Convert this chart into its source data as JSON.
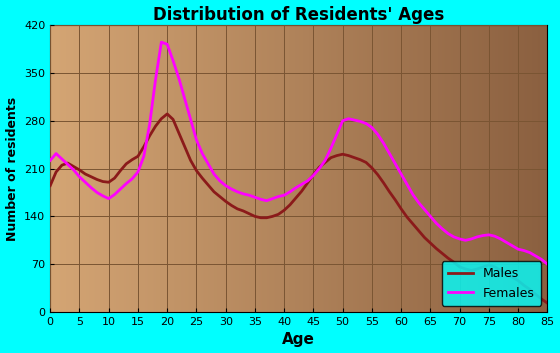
{
  "title": "Distribution of Residents' Ages",
  "xlabel": "Age",
  "ylabel": "Number of residents",
  "xlim": [
    0,
    85
  ],
  "ylim": [
    0,
    420
  ],
  "xticks": [
    0,
    5,
    10,
    15,
    20,
    25,
    30,
    35,
    40,
    45,
    50,
    55,
    60,
    65,
    70,
    75,
    80,
    85
  ],
  "yticks": [
    0,
    70,
    140,
    210,
    280,
    350,
    420
  ],
  "background_outer": "#00FFFF",
  "background_plot_left": "#D4A574",
  "background_plot_right": "#8B6040",
  "grid_color": "#7A5533",
  "males_color": "#8B1A1A",
  "females_color": "#FF00FF",
  "males_ages": [
    0,
    1,
    2,
    3,
    4,
    5,
    6,
    7,
    8,
    9,
    10,
    11,
    12,
    13,
    14,
    15,
    16,
    17,
    18,
    19,
    20,
    21,
    22,
    23,
    24,
    25,
    26,
    27,
    28,
    29,
    30,
    31,
    32,
    33,
    34,
    35,
    36,
    37,
    38,
    39,
    40,
    41,
    42,
    43,
    44,
    45,
    46,
    47,
    48,
    49,
    50,
    51,
    52,
    53,
    54,
    55,
    56,
    57,
    58,
    59,
    60,
    61,
    62,
    63,
    64,
    65,
    66,
    67,
    68,
    69,
    70,
    71,
    72,
    73,
    74,
    75,
    76,
    77,
    78,
    79,
    80,
    81,
    82,
    83,
    84,
    85
  ],
  "males_values": [
    185,
    205,
    215,
    218,
    213,
    208,
    202,
    198,
    194,
    191,
    190,
    196,
    207,
    217,
    223,
    228,
    242,
    258,
    272,
    283,
    290,
    282,
    262,
    242,
    222,
    207,
    196,
    186,
    176,
    169,
    162,
    156,
    151,
    148,
    144,
    140,
    138,
    138,
    140,
    143,
    149,
    157,
    167,
    177,
    189,
    201,
    212,
    219,
    226,
    229,
    231,
    229,
    226,
    223,
    219,
    211,
    201,
    189,
    176,
    164,
    151,
    139,
    129,
    119,
    109,
    101,
    93,
    86,
    79,
    73,
    66,
    63,
    61,
    63,
    66,
    69,
    66,
    61,
    56,
    51,
    46,
    39,
    33,
    26,
    19,
    13
  ],
  "females_ages": [
    0,
    1,
    2,
    3,
    4,
    5,
    6,
    7,
    8,
    9,
    10,
    11,
    12,
    13,
    14,
    15,
    16,
    17,
    18,
    19,
    20,
    21,
    22,
    23,
    24,
    25,
    26,
    27,
    28,
    29,
    30,
    31,
    32,
    33,
    34,
    35,
    36,
    37,
    38,
    39,
    40,
    41,
    42,
    43,
    44,
    45,
    46,
    47,
    48,
    49,
    50,
    51,
    52,
    53,
    54,
    55,
    56,
    57,
    58,
    59,
    60,
    61,
    62,
    63,
    64,
    65,
    66,
    67,
    68,
    69,
    70,
    71,
    72,
    73,
    74,
    75,
    76,
    77,
    78,
    79,
    80,
    81,
    82,
    83,
    84,
    85
  ],
  "females_values": [
    222,
    232,
    224,
    216,
    208,
    198,
    190,
    182,
    175,
    170,
    166,
    172,
    180,
    188,
    195,
    205,
    228,
    275,
    340,
    395,
    392,
    368,
    342,
    312,
    282,
    252,
    232,
    217,
    202,
    192,
    185,
    180,
    176,
    173,
    171,
    168,
    165,
    163,
    166,
    169,
    171,
    176,
    182,
    187,
    192,
    200,
    210,
    222,
    240,
    260,
    280,
    283,
    281,
    279,
    276,
    270,
    260,
    247,
    232,
    217,
    202,
    187,
    172,
    160,
    150,
    140,
    130,
    122,
    115,
    110,
    107,
    105,
    107,
    110,
    112,
    113,
    111,
    107,
    102,
    97,
    92,
    90,
    87,
    82,
    77,
    70
  ],
  "legend_labels": [
    "Males",
    "Females"
  ],
  "legend_bg": "#00FFFF"
}
